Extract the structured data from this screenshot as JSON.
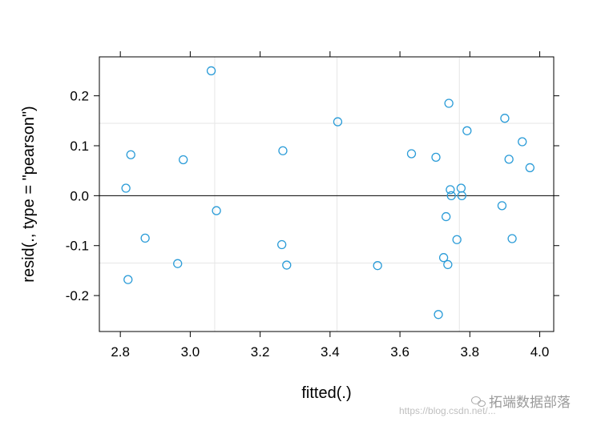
{
  "chart_data": {
    "type": "scatter",
    "xlabel": "fitted(.)",
    "ylabel": "resid(., type = \"pearson\")",
    "xlim": [
      2.74,
      4.04
    ],
    "ylim": [
      -0.272,
      0.278
    ],
    "x_ticks": [
      "2.8",
      "3.0",
      "3.2",
      "3.4",
      "3.6",
      "3.8",
      "4.0"
    ],
    "y_ticks": [
      "-0.2",
      "-0.1",
      "0.0",
      "0.1",
      "0.2"
    ],
    "reference_lines": {
      "horizontal": [
        0.0
      ]
    },
    "grid": {
      "vertical": [
        3.07,
        3.42,
        3.77
      ],
      "horizontal": [
        -0.135,
        0.145
      ]
    },
    "point_color": "#2b9cd8",
    "points": [
      {
        "x": 2.816,
        "y": 0.015
      },
      {
        "x": 2.822,
        "y": -0.168
      },
      {
        "x": 2.83,
        "y": 0.082
      },
      {
        "x": 2.871,
        "y": -0.085
      },
      {
        "x": 2.964,
        "y": -0.136
      },
      {
        "x": 2.98,
        "y": 0.072
      },
      {
        "x": 3.06,
        "y": 0.25
      },
      {
        "x": 3.075,
        "y": -0.03
      },
      {
        "x": 3.262,
        "y": -0.098
      },
      {
        "x": 3.265,
        "y": 0.09
      },
      {
        "x": 3.276,
        "y": -0.139
      },
      {
        "x": 3.422,
        "y": 0.148
      },
      {
        "x": 3.536,
        "y": -0.14
      },
      {
        "x": 3.633,
        "y": 0.084
      },
      {
        "x": 3.703,
        "y": 0.077
      },
      {
        "x": 3.71,
        "y": -0.238
      },
      {
        "x": 3.725,
        "y": -0.124
      },
      {
        "x": 3.732,
        "y": -0.042
      },
      {
        "x": 3.737,
        "y": -0.138
      },
      {
        "x": 3.74,
        "y": 0.185
      },
      {
        "x": 3.744,
        "y": 0.012
      },
      {
        "x": 3.747,
        "y": 0.0
      },
      {
        "x": 3.763,
        "y": -0.088
      },
      {
        "x": 3.775,
        "y": 0.015
      },
      {
        "x": 3.777,
        "y": 0.0
      },
      {
        "x": 3.792,
        "y": 0.13
      },
      {
        "x": 3.892,
        "y": -0.02
      },
      {
        "x": 3.9,
        "y": 0.155
      },
      {
        "x": 3.912,
        "y": 0.073
      },
      {
        "x": 3.921,
        "y": -0.086
      },
      {
        "x": 3.95,
        "y": 0.108
      },
      {
        "x": 3.972,
        "y": 0.056
      }
    ]
  },
  "watermark": {
    "text": "拓端数据部落"
  },
  "source_url": "https://blog.csdn.net/..."
}
